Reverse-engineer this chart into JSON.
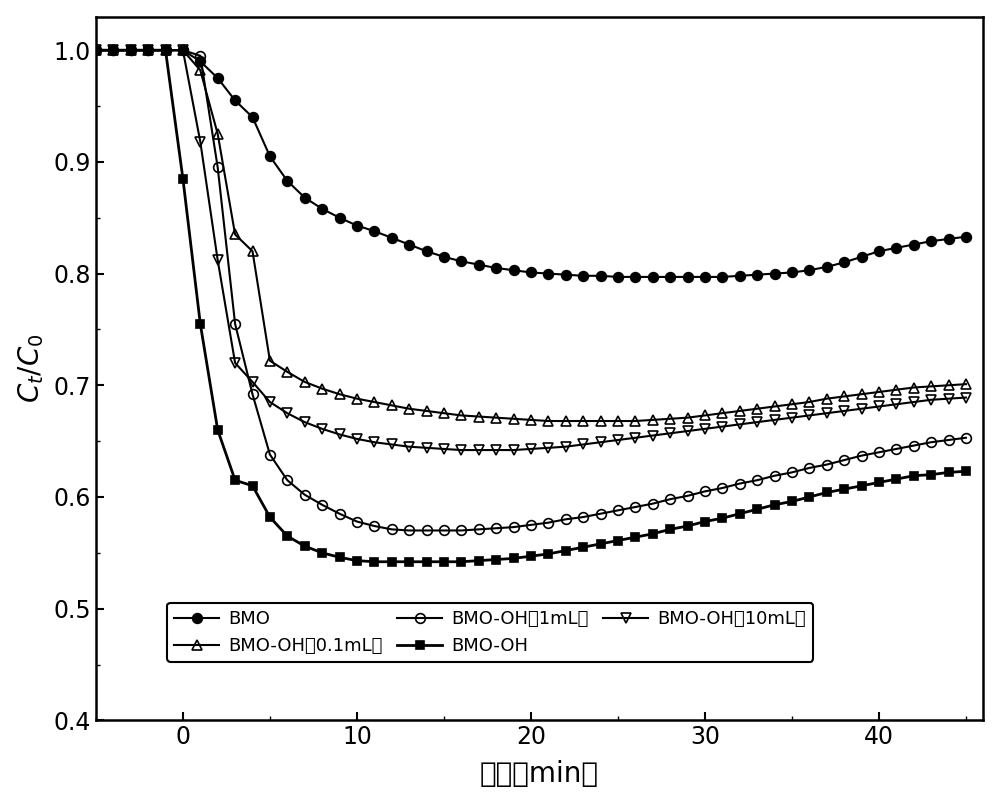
{
  "title": "",
  "xlabel": "时间（min）",
  "xlim": [
    -5,
    46
  ],
  "ylim": [
    0.4,
    1.03
  ],
  "yticks": [
    0.4,
    0.5,
    0.6,
    0.7,
    0.8,
    0.9,
    1.0
  ],
  "xticks": [
    0,
    10,
    20,
    30,
    40
  ],
  "background_color": "#ffffff",
  "series": [
    {
      "label": "BMO",
      "marker": "o",
      "fillstyle": "full",
      "color": "#000000",
      "linewidth": 1.5,
      "markersize": 7,
      "markevery": 1,
      "x": [
        -5,
        -4,
        -3,
        -2,
        -1,
        0,
        1,
        2,
        3,
        4,
        5,
        6,
        7,
        8,
        9,
        10,
        11,
        12,
        13,
        14,
        15,
        16,
        17,
        18,
        19,
        20,
        21,
        22,
        23,
        24,
        25,
        26,
        27,
        28,
        29,
        30,
        31,
        32,
        33,
        34,
        35,
        36,
        37,
        38,
        39,
        40,
        41,
        42,
        43,
        44,
        45
      ],
      "y": [
        1.0,
        1.0,
        1.0,
        1.0,
        1.0,
        1.0,
        0.99,
        0.975,
        0.955,
        0.94,
        0.905,
        0.883,
        0.868,
        0.858,
        0.85,
        0.843,
        0.838,
        0.832,
        0.826,
        0.82,
        0.815,
        0.811,
        0.808,
        0.805,
        0.803,
        0.801,
        0.8,
        0.799,
        0.798,
        0.798,
        0.797,
        0.797,
        0.797,
        0.797,
        0.797,
        0.797,
        0.797,
        0.798,
        0.799,
        0.8,
        0.801,
        0.803,
        0.806,
        0.81,
        0.815,
        0.82,
        0.823,
        0.826,
        0.829,
        0.831,
        0.833
      ]
    },
    {
      "label": "BMO-OH",
      "marker": "s",
      "fillstyle": "full",
      "color": "#000000",
      "linewidth": 2.0,
      "markersize": 6,
      "markevery": 1,
      "x": [
        -5,
        -4,
        -3,
        -2,
        -1,
        0,
        1,
        2,
        3,
        4,
        5,
        6,
        7,
        8,
        9,
        10,
        11,
        12,
        13,
        14,
        15,
        16,
        17,
        18,
        19,
        20,
        21,
        22,
        23,
        24,
        25,
        26,
        27,
        28,
        29,
        30,
        31,
        32,
        33,
        34,
        35,
        36,
        37,
        38,
        39,
        40,
        41,
        42,
        43,
        44,
        45
      ],
      "y": [
        1.0,
        1.0,
        1.0,
        1.0,
        1.0,
        0.885,
        0.755,
        0.66,
        0.615,
        0.61,
        0.582,
        0.565,
        0.556,
        0.55,
        0.546,
        0.543,
        0.542,
        0.542,
        0.542,
        0.542,
        0.542,
        0.542,
        0.543,
        0.544,
        0.545,
        0.547,
        0.549,
        0.552,
        0.555,
        0.558,
        0.561,
        0.564,
        0.567,
        0.571,
        0.574,
        0.578,
        0.581,
        0.585,
        0.589,
        0.593,
        0.596,
        0.6,
        0.604,
        0.607,
        0.61,
        0.613,
        0.616,
        0.619,
        0.62,
        0.622,
        0.623
      ]
    },
    {
      "label": "BMO-OH(0.1mL)",
      "marker": "^",
      "fillstyle": "none",
      "color": "#000000",
      "linewidth": 1.5,
      "markersize": 7,
      "markevery": 1,
      "x": [
        -5,
        -4,
        -3,
        -2,
        -1,
        0,
        1,
        2,
        3,
        4,
        5,
        6,
        7,
        8,
        9,
        10,
        11,
        12,
        13,
        14,
        15,
        16,
        17,
        18,
        19,
        20,
        21,
        22,
        23,
        24,
        25,
        26,
        27,
        28,
        29,
        30,
        31,
        32,
        33,
        34,
        35,
        36,
        37,
        38,
        39,
        40,
        41,
        42,
        43,
        44,
        45
      ],
      "y": [
        1.0,
        1.0,
        1.0,
        1.0,
        1.0,
        1.0,
        0.982,
        0.925,
        0.835,
        0.82,
        0.722,
        0.712,
        0.703,
        0.697,
        0.692,
        0.688,
        0.685,
        0.682,
        0.679,
        0.677,
        0.675,
        0.673,
        0.672,
        0.671,
        0.67,
        0.669,
        0.668,
        0.668,
        0.668,
        0.668,
        0.668,
        0.668,
        0.669,
        0.67,
        0.671,
        0.673,
        0.675,
        0.677,
        0.679,
        0.681,
        0.683,
        0.685,
        0.688,
        0.69,
        0.692,
        0.694,
        0.696,
        0.698,
        0.699,
        0.7,
        0.701
      ]
    },
    {
      "label": "BMO-OH(1mL)",
      "marker": "o",
      "fillstyle": "none",
      "color": "#000000",
      "linewidth": 1.5,
      "markersize": 7,
      "markevery": 1,
      "x": [
        -5,
        -4,
        -3,
        -2,
        -1,
        0,
        1,
        2,
        3,
        4,
        5,
        6,
        7,
        8,
        9,
        10,
        11,
        12,
        13,
        14,
        15,
        16,
        17,
        18,
        19,
        20,
        21,
        22,
        23,
        24,
        25,
        26,
        27,
        28,
        29,
        30,
        31,
        32,
        33,
        34,
        35,
        36,
        37,
        38,
        39,
        40,
        41,
        42,
        43,
        44,
        45
      ],
      "y": [
        1.0,
        1.0,
        1.0,
        1.0,
        1.0,
        1.0,
        0.995,
        0.895,
        0.755,
        0.692,
        0.638,
        0.615,
        0.602,
        0.593,
        0.585,
        0.578,
        0.574,
        0.571,
        0.57,
        0.57,
        0.57,
        0.57,
        0.571,
        0.572,
        0.573,
        0.575,
        0.577,
        0.58,
        0.582,
        0.585,
        0.588,
        0.591,
        0.594,
        0.598,
        0.601,
        0.605,
        0.608,
        0.612,
        0.615,
        0.619,
        0.622,
        0.626,
        0.629,
        0.633,
        0.637,
        0.64,
        0.643,
        0.646,
        0.649,
        0.651,
        0.653
      ]
    },
    {
      "label": "BMO-OH(10mL)",
      "marker": "v",
      "fillstyle": "none",
      "color": "#000000",
      "linewidth": 1.5,
      "markersize": 7,
      "markevery": 1,
      "x": [
        -5,
        -4,
        -3,
        -2,
        -1,
        0,
        1,
        2,
        3,
        4,
        5,
        6,
        7,
        8,
        9,
        10,
        11,
        12,
        13,
        14,
        15,
        16,
        17,
        18,
        19,
        20,
        21,
        22,
        23,
        24,
        25,
        26,
        27,
        28,
        29,
        30,
        31,
        32,
        33,
        34,
        35,
        36,
        37,
        38,
        39,
        40,
        41,
        42,
        43,
        44,
        45
      ],
      "y": [
        1.0,
        1.0,
        1.0,
        1.0,
        1.0,
        1.0,
        0.918,
        0.812,
        0.72,
        0.703,
        0.685,
        0.675,
        0.667,
        0.661,
        0.656,
        0.652,
        0.649,
        0.647,
        0.645,
        0.644,
        0.643,
        0.642,
        0.642,
        0.642,
        0.642,
        0.643,
        0.644,
        0.645,
        0.647,
        0.649,
        0.651,
        0.653,
        0.655,
        0.657,
        0.659,
        0.661,
        0.663,
        0.665,
        0.667,
        0.669,
        0.671,
        0.673,
        0.675,
        0.677,
        0.679,
        0.681,
        0.683,
        0.685,
        0.687,
        0.688,
        0.689
      ]
    }
  ]
}
